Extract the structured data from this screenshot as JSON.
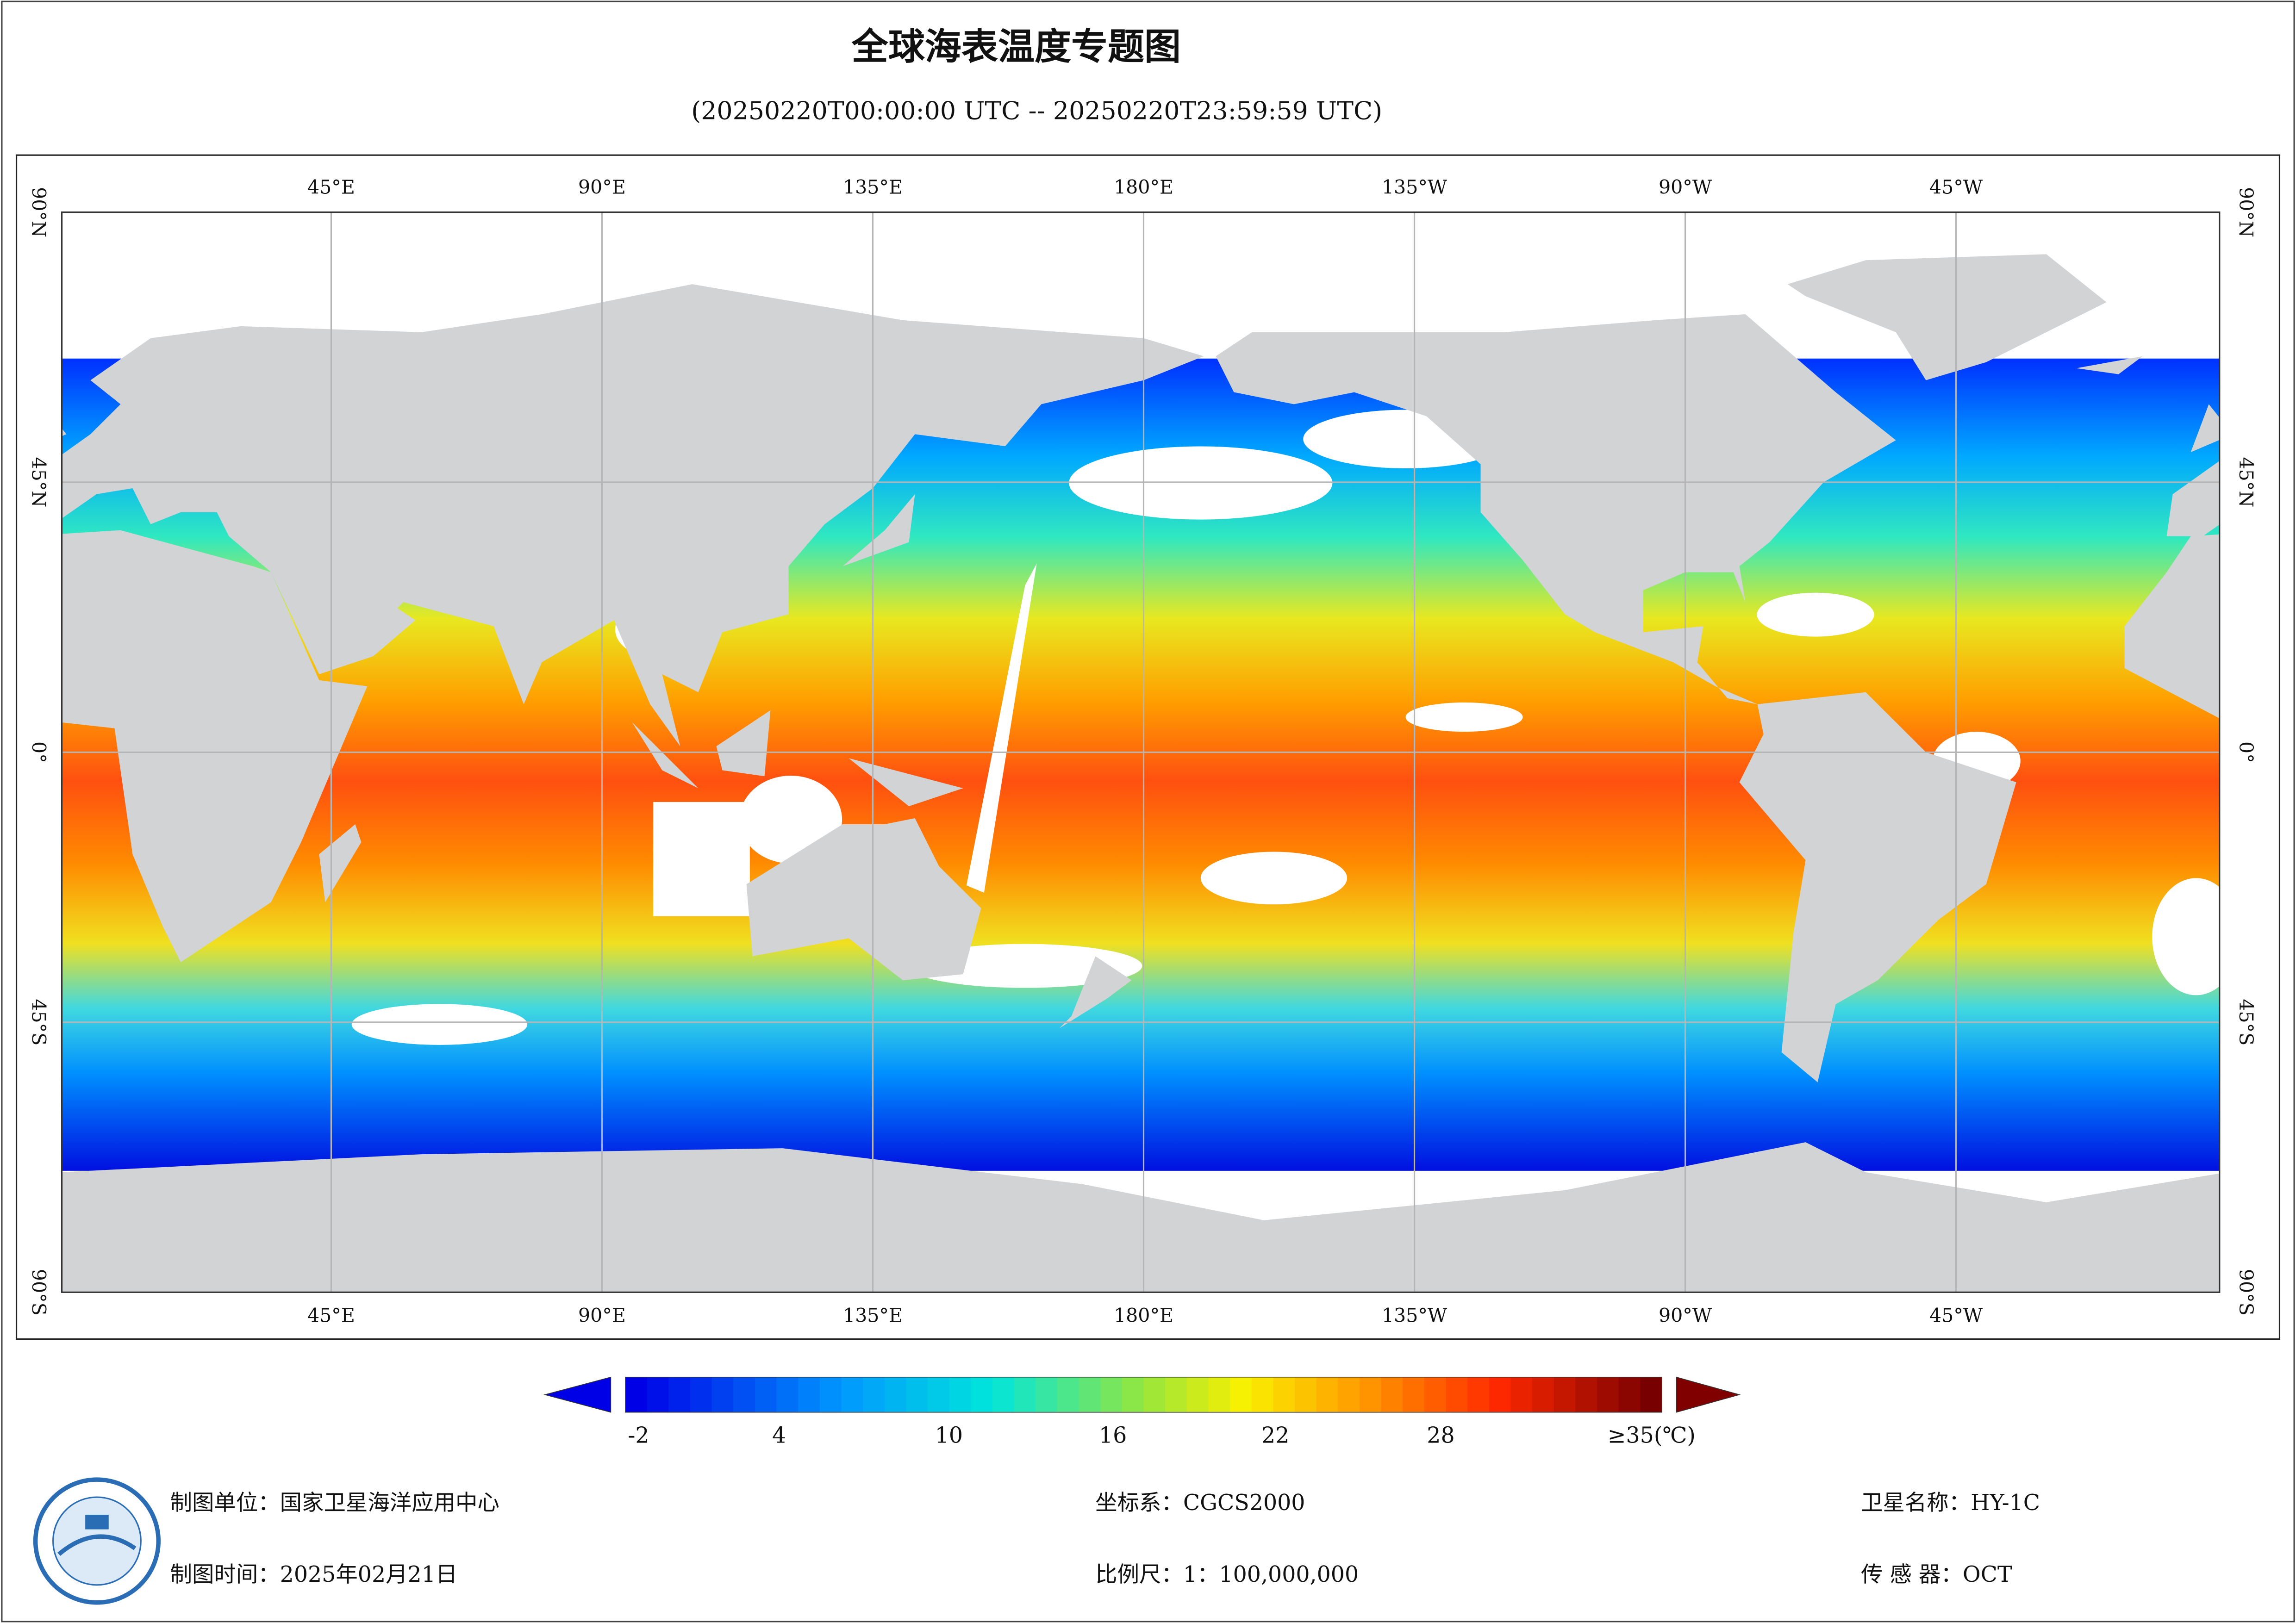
{
  "header": {
    "title": "全球海表温度专题图",
    "subtitle": "(20250220T00:00:00 UTC -- 20250220T23:59:59 UTC)"
  },
  "map": {
    "longitude_labels": [
      "45°E",
      "90°E",
      "135°E",
      "180°E",
      "135°W",
      "90°W",
      "45°W"
    ],
    "latitude_labels": [
      "90°N",
      "45°N",
      "0°",
      "45°S",
      "90°S"
    ]
  },
  "legend": {
    "tick_labels": [
      "-2",
      "4",
      "10",
      "16",
      "22",
      "28",
      "≥35(℃)"
    ]
  },
  "footer": {
    "mapping_unit": "制图单位：国家卫星海洋应用中心",
    "mapping_time": "制图时间：2025年02月21日",
    "coordinate_system": "坐标系：CGCS2000",
    "scale": "比例尺：1：100,000,000",
    "satellite": "卫星名称：HY-1C",
    "sensor": "传 感 器：OCT"
  }
}
